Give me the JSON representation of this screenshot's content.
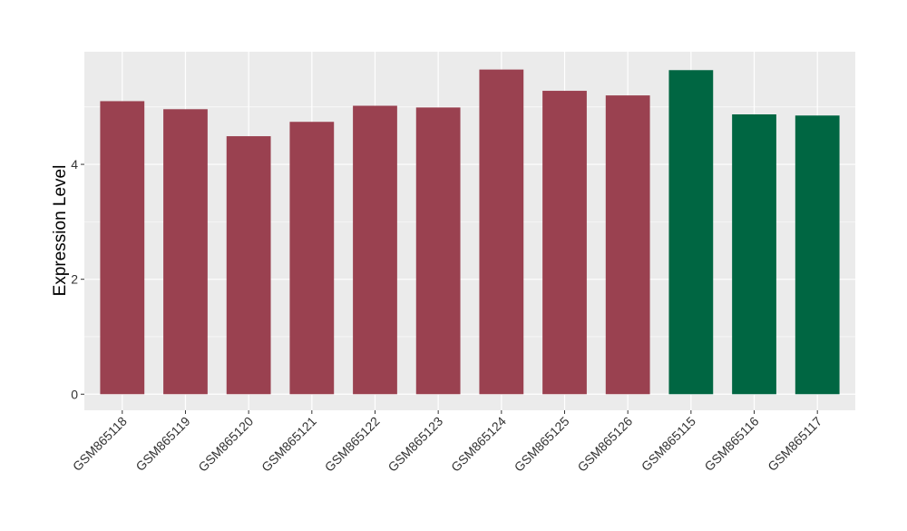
{
  "chart_data": {
    "type": "bar",
    "title": "",
    "xlabel": "",
    "ylabel": "Expression Level",
    "ylim": [
      -0.28,
      5.96
    ],
    "yticks": [
      0,
      2,
      4
    ],
    "ytick_labels": [
      "0",
      "2",
      "4"
    ],
    "grid": true,
    "categories": [
      "GSM865118",
      "GSM865119",
      "GSM865120",
      "GSM865121",
      "GSM865122",
      "GSM865123",
      "GSM865124",
      "GSM865125",
      "GSM865126",
      "GSM865115",
      "GSM865116",
      "GSM865117"
    ],
    "values": [
      5.1,
      4.96,
      4.49,
      4.74,
      5.02,
      4.99,
      5.65,
      5.28,
      5.2,
      5.64,
      4.87,
      4.85
    ],
    "groups": [
      "a",
      "a",
      "a",
      "a",
      "a",
      "a",
      "a",
      "a",
      "a",
      "b",
      "b",
      "b"
    ],
    "group_colors": {
      "a": "#9A4150",
      "b": "#006642"
    },
    "panel_color": "#EBEBEB",
    "grid_color": "#FFFFFF"
  }
}
